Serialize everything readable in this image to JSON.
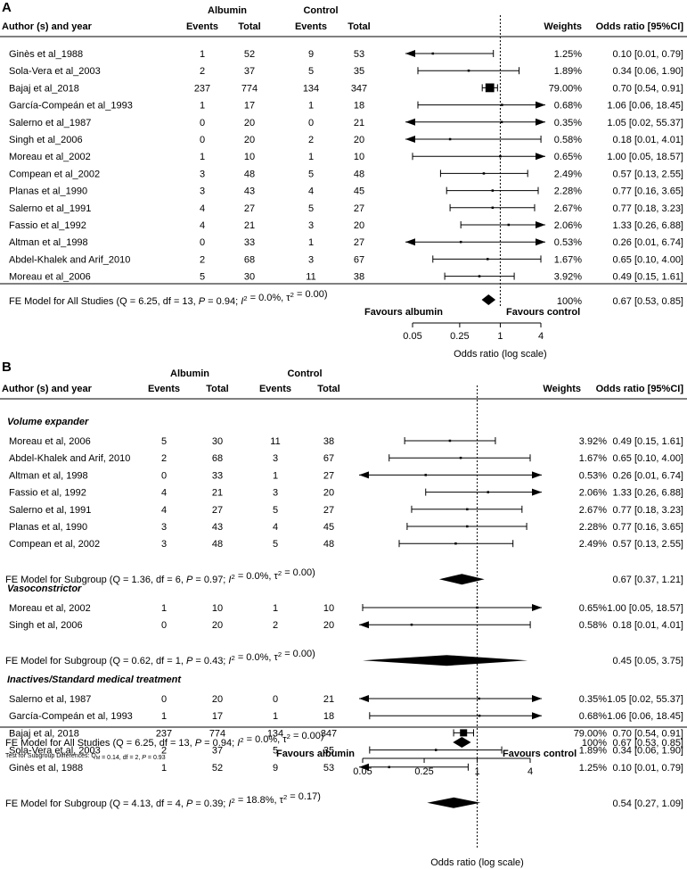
{
  "chart_data": [
    {
      "type": "forest",
      "panel": "A",
      "headers": {
        "author": "Author (s) and year",
        "albumin_group": "Albumin",
        "control_group": "Control",
        "events": "Events",
        "total": "Total",
        "weights": "Weights",
        "or_ci": "Odds ratio [95%CI]"
      },
      "studies": [
        {
          "name": "Ginès et al_1988",
          "ae": "1",
          "at": "52",
          "ce": "9",
          "ct": "53",
          "w": "1.25%",
          "or": 0.1,
          "lo": 0.01,
          "hi": 0.79,
          "ci": "0.10 [0.01,  0.79]"
        },
        {
          "name": "Sola-Vera et al_2003",
          "ae": "2",
          "at": "37",
          "ce": "5",
          "ct": "35",
          "w": "1.89%",
          "or": 0.34,
          "lo": 0.06,
          "hi": 1.9,
          "ci": "0.34 [0.06,  1.90]"
        },
        {
          "name": "Bajaj et al_2018",
          "ae": "237",
          "at": "774",
          "ce": "134",
          "ct": "347",
          "w": "79.00%",
          "or": 0.7,
          "lo": 0.54,
          "hi": 0.91,
          "ci": "0.70 [0.54,  0.91]"
        },
        {
          "name": "García-Compeán et al_1993",
          "ae": "1",
          "at": "17",
          "ce": "1",
          "ct": "18",
          "w": "0.68%",
          "or": 1.06,
          "lo": 0.06,
          "hi": 18.45,
          "ci": "1.06 [0.06, 18.45]"
        },
        {
          "name": "Salerno et al_1987",
          "ae": "0",
          "at": "20",
          "ce": "0",
          "ct": "21",
          "w": "0.35%",
          "or": 1.05,
          "lo": 0.02,
          "hi": 55.37,
          "ci": "1.05 [0.02, 55.37]"
        },
        {
          "name": "Singh et al_2006",
          "ae": "0",
          "at": "20",
          "ce": "2",
          "ct": "20",
          "w": "0.58%",
          "or": 0.18,
          "lo": 0.01,
          "hi": 4.01,
          "ci": "0.18 [0.01,  4.01]"
        },
        {
          "name": "Moreau et al_2002",
          "ae": "1",
          "at": "10",
          "ce": "1",
          "ct": "10",
          "w": "0.65%",
          "or": 1.0,
          "lo": 0.05,
          "hi": 18.57,
          "ci": "1.00 [0.05, 18.57]"
        },
        {
          "name": "Compean et al_2002",
          "ae": "3",
          "at": "48",
          "ce": "5",
          "ct": "48",
          "w": "2.49%",
          "or": 0.57,
          "lo": 0.13,
          "hi": 2.55,
          "ci": "0.57 [0.13,  2.55]"
        },
        {
          "name": "Planas et al_1990",
          "ae": "3",
          "at": "43",
          "ce": "4",
          "ct": "45",
          "w": "2.28%",
          "or": 0.77,
          "lo": 0.16,
          "hi": 3.65,
          "ci": "0.77 [0.16,  3.65]"
        },
        {
          "name": "Salerno et al_1991",
          "ae": "4",
          "at": "27",
          "ce": "5",
          "ct": "27",
          "w": "2.67%",
          "or": 0.77,
          "lo": 0.18,
          "hi": 3.23,
          "ci": "0.77 [0.18,  3.23]"
        },
        {
          "name": "Fassio et al_1992",
          "ae": "4",
          "at": "21",
          "ce": "3",
          "ct": "20",
          "w": "2.06%",
          "or": 1.33,
          "lo": 0.26,
          "hi": 6.88,
          "ci": "1.33 [0.26,  6.88]"
        },
        {
          "name": "Altman et al_1998",
          "ae": "0",
          "at": "33",
          "ce": "1",
          "ct": "27",
          "w": "0.53%",
          "or": 0.26,
          "lo": 0.01,
          "hi": 6.74,
          "ci": "0.26 [0.01,  6.74]"
        },
        {
          "name": "Abdel-Khalek and Arif_2010",
          "ae": "2",
          "at": "68",
          "ce": "3",
          "ct": "67",
          "w": "1.67%",
          "or": 0.65,
          "lo": 0.1,
          "hi": 4.0,
          "ci": "0.65 [0.10,  4.00]"
        },
        {
          "name": "Moreau et al_2006",
          "ae": "5",
          "at": "30",
          "ce": "11",
          "ct": "38",
          "w": "3.92%",
          "or": 0.49,
          "lo": 0.15,
          "hi": 1.61,
          "ci": "0.49 [0.15,  1.61]"
        }
      ],
      "overall": {
        "label": "FE Model for All Studies (Q = 6.25, df = 13, P = 0.94; I² = 0.0%, τ² = 0.00)",
        "w": "100%",
        "or": 0.67,
        "lo": 0.53,
        "hi": 0.85,
        "ci": "0.67 [0.53,  0.85]"
      },
      "favours_left": "Favours albumin",
      "favours_right": "Favours control",
      "ticks": [
        0.05,
        0.25,
        1,
        4
      ],
      "tick_labels": [
        "0.05",
        "0.25",
        "1",
        "4"
      ],
      "xlabel": "Odds ratio (log scale)",
      "xlim": [
        0.02,
        6
      ]
    },
    {
      "type": "forest",
      "panel": "B",
      "headers": {
        "author": "Author (s) and year",
        "albumin_group": "Albumin",
        "control_group": "Control",
        "events": "Events",
        "total": "Total",
        "weights": "Weights",
        "or_ci": "Odds ratio [95%CI]"
      },
      "subgroups": [
        {
          "title": "Volume expander",
          "studies": [
            {
              "name": "Moreau et al, 2006",
              "ae": "5",
              "at": "30",
              "ce": "11",
              "ct": "38",
              "w": "3.92%",
              "or": 0.49,
              "lo": 0.15,
              "hi": 1.61,
              "ci": "0.49 [0.15,  1.61]"
            },
            {
              "name": "Abdel-Khalek and Arif, 2010",
              "ae": "2",
              "at": "68",
              "ce": "3",
              "ct": "67",
              "w": "1.67%",
              "or": 0.65,
              "lo": 0.1,
              "hi": 4.0,
              "ci": "0.65 [0.10,  4.00]"
            },
            {
              "name": "Altman et al, 1998",
              "ae": "0",
              "at": "33",
              "ce": "1",
              "ct": "27",
              "w": "0.53%",
              "or": 0.26,
              "lo": 0.01,
              "hi": 6.74,
              "ci": "0.26 [0.01,  6.74]"
            },
            {
              "name": "Fassio et al, 1992",
              "ae": "4",
              "at": "21",
              "ce": "3",
              "ct": "20",
              "w": "2.06%",
              "or": 1.33,
              "lo": 0.26,
              "hi": 6.88,
              "ci": "1.33 [0.26,  6.88]"
            },
            {
              "name": "Salerno et al, 1991",
              "ae": "4",
              "at": "27",
              "ce": "5",
              "ct": "27",
              "w": "2.67%",
              "or": 0.77,
              "lo": 0.18,
              "hi": 3.23,
              "ci": "0.77 [0.18,  3.23]"
            },
            {
              "name": "Planas et al, 1990",
              "ae": "3",
              "at": "43",
              "ce": "4",
              "ct": "45",
              "w": "2.28%",
              "or": 0.77,
              "lo": 0.16,
              "hi": 3.65,
              "ci": "0.77 [0.16,  3.65]"
            },
            {
              "name": "Compean et al, 2002",
              "ae": "3",
              "at": "48",
              "ce": "5",
              "ct": "48",
              "w": "2.49%",
              "or": 0.57,
              "lo": 0.13,
              "hi": 2.55,
              "ci": "0.57 [0.13,  2.55]"
            }
          ],
          "summary": {
            "label": "FE Model for Subgroup (Q = 1.36, df = 6, P = 0.97; I² = 0.0%, τ² = 0.00)",
            "or": 0.67,
            "lo": 0.37,
            "hi": 1.21,
            "ci": "0.67 [0.37,  1.21]"
          }
        },
        {
          "title": "Vasoconstrictor",
          "studies": [
            {
              "name": "Moreau et al, 2002",
              "ae": "1",
              "at": "10",
              "ce": "1",
              "ct": "10",
              "w": "0.65%",
              "or": 1.0,
              "lo": 0.05,
              "hi": 18.57,
              "ci": "1.00 [0.05, 18.57]"
            },
            {
              "name": "Singh et al, 2006",
              "ae": "0",
              "at": "20",
              "ce": "2",
              "ct": "20",
              "w": "0.58%",
              "or": 0.18,
              "lo": 0.01,
              "hi": 4.01,
              "ci": "0.18 [0.01,  4.01]"
            }
          ],
          "summary": {
            "label": "FE Model for Subgroup (Q = 0.62, df = 1, P = 0.43; I² = 0.0%, τ² = 0.00)",
            "or": 0.45,
            "lo": 0.05,
            "hi": 3.75,
            "ci": "0.45 [0.05,  3.75]"
          }
        },
        {
          "title": "Inactives/Standard medical treatment",
          "studies": [
            {
              "name": "Salerno et al, 1987",
              "ae": "0",
              "at": "20",
              "ce": "0",
              "ct": "21",
              "w": "0.35%",
              "or": 1.05,
              "lo": 0.02,
              "hi": 55.37,
              "ci": "1.05 [0.02, 55.37]"
            },
            {
              "name": "García-Compeán et al, 1993",
              "ae": "1",
              "at": "17",
              "ce": "1",
              "ct": "18",
              "w": "0.68%",
              "or": 1.06,
              "lo": 0.06,
              "hi": 18.45,
              "ci": "1.06 [0.06, 18.45]"
            },
            {
              "name": "Bajaj et al, 2018",
              "ae": "237",
              "at": "774",
              "ce": "134",
              "ct": "347",
              "w": "79.00%",
              "or": 0.7,
              "lo": 0.54,
              "hi": 0.91,
              "ci": "0.70 [0.54,  0.91]"
            },
            {
              "name": "Sola-Vera et al, 2003",
              "ae": "2",
              "at": "37",
              "ce": "5",
              "ct": "35",
              "w": "1.89%",
              "or": 0.34,
              "lo": 0.06,
              "hi": 1.9,
              "ci": "0.34 [0.06,  1.90]"
            },
            {
              "name": "Ginès et al, 1988",
              "ae": "1",
              "at": "52",
              "ce": "9",
              "ct": "53",
              "w": "1.25%",
              "or": 0.1,
              "lo": 0.01,
              "hi": 0.79,
              "ci": "0.10 [0.01,  0.79]"
            }
          ],
          "summary": {
            "label": "FE Model for Subgroup (Q = 4.13, df = 4, P = 0.39; I² = 18.8%, τ² = 0.17)",
            "or": 0.54,
            "lo": 0.27,
            "hi": 1.09,
            "ci": "0.54 [0.27,  1.09]"
          }
        }
      ],
      "overall": {
        "label": "FE Model for All Studies (Q = 6.25, df = 13, P = 0.94; I² = 0.0%, τ² = 0.00)",
        "w": "100%",
        "or": 0.67,
        "lo": 0.53,
        "hi": 0.85,
        "ci": "0.67 [0.53,  0.85]"
      },
      "subgroup_test": "Test for Subgroup Differences: QM = 0.14, df = 2, P = 0.93",
      "favours_left": "Favours albumin",
      "favours_right": "Favours control",
      "ticks": [
        0.05,
        0.25,
        1,
        4
      ],
      "tick_labels": [
        "0.05",
        "0.25",
        "1",
        "4"
      ],
      "xlabel": "Odds ratio (log scale)",
      "xlim": [
        0.02,
        6
      ]
    }
  ]
}
